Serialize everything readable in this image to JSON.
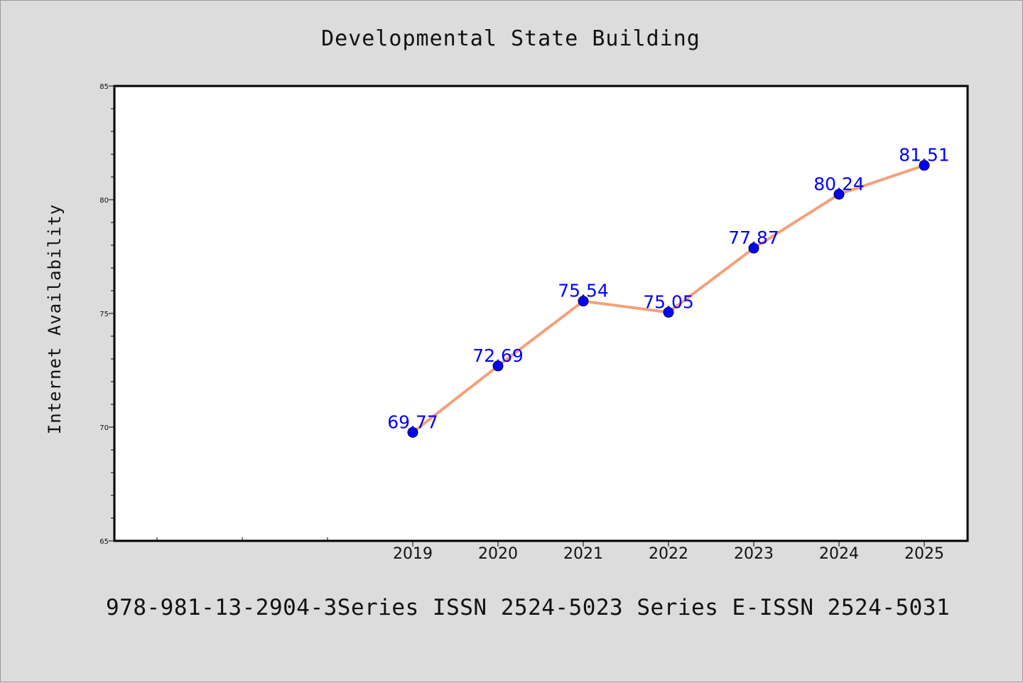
{
  "chart_data": {
    "type": "line",
    "title": "Developmental State Building",
    "ylabel": "Internet Availability",
    "xlabel": "",
    "categories": [
      "2019",
      "2020",
      "2021",
      "2022",
      "2023",
      "2024",
      "2025"
    ],
    "values": [
      69.77,
      72.69,
      75.54,
      75.05,
      77.87,
      80.24,
      81.51
    ],
    "data_labels": [
      "69.77",
      "72.69",
      "75.54",
      "75.05",
      "77.87",
      "80.24",
      "81.51"
    ],
    "ylim": [
      65,
      85
    ],
    "yticks": [
      "65",
      "70",
      "75",
      "80",
      "85"
    ],
    "grid": false,
    "legend": "none",
    "line_color": "#f4a07a",
    "marker_color": "#0000ff",
    "label_color": "#0000ff"
  },
  "footer": {
    "text": "978-981-13-2904-3Series ISSN 2524-5023 Series E-ISSN 2524-5031"
  },
  "colors": {
    "background": "#dcdcdc",
    "plot_background": "#ffffff"
  }
}
